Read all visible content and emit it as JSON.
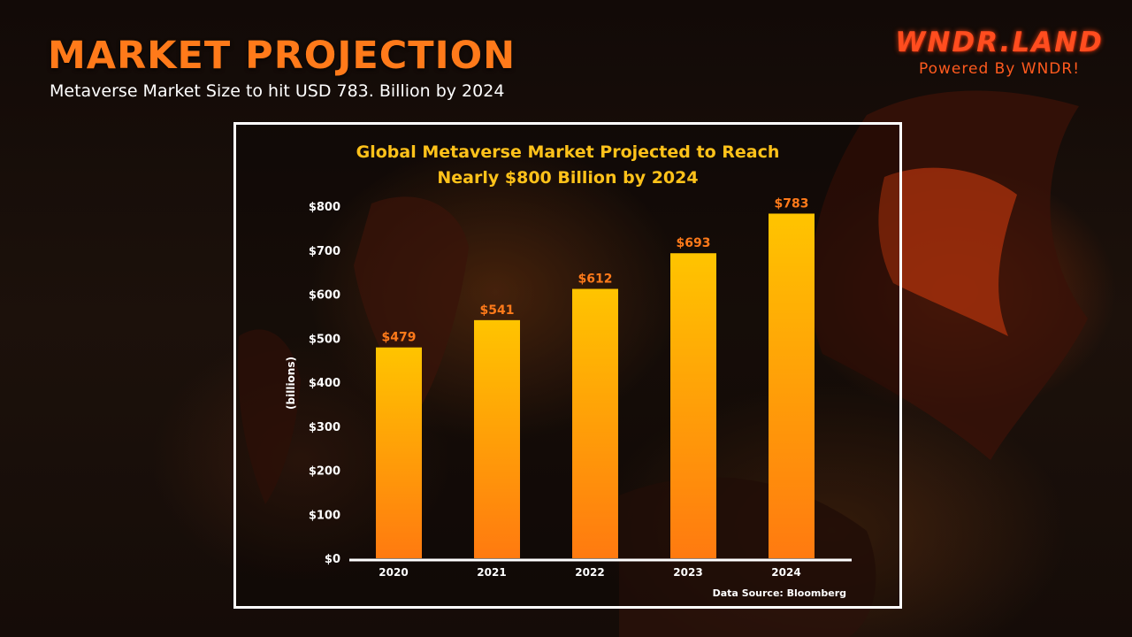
{
  "slide": {
    "title": "MARKET PROJECTION",
    "subtitle": "Metaverse Market Size to hit USD 783. Billion by 2024",
    "brand": "WNDR.LAND",
    "tagline": "Powered By WNDR!"
  },
  "chart_data": {
    "type": "bar",
    "title_lines": [
      "Global Metaverse Market Projected to Reach",
      "Nearly $800 Billion by 2024"
    ],
    "categories": [
      "2020",
      "2021",
      "2022",
      "2023",
      "2024"
    ],
    "values": [
      479,
      541,
      612,
      693,
      783
    ],
    "data_labels": [
      "$479",
      "$541",
      "$612",
      "$693",
      "$783"
    ],
    "ylabel": "(billions)",
    "ylim": [
      0,
      800
    ],
    "yticks": [
      0,
      100,
      200,
      300,
      400,
      500,
      600,
      700,
      800
    ],
    "ytick_labels": [
      "$0",
      "$100",
      "$200",
      "$300",
      "$400",
      "$500",
      "$600",
      "$700",
      "$800"
    ],
    "grid": false,
    "source": "Data Source: Bloomberg",
    "colors": {
      "bar_top": "#ffc400",
      "bar_bottom": "#ff7a10",
      "label": "#ff7a1a",
      "title": "#ffc21a"
    }
  }
}
